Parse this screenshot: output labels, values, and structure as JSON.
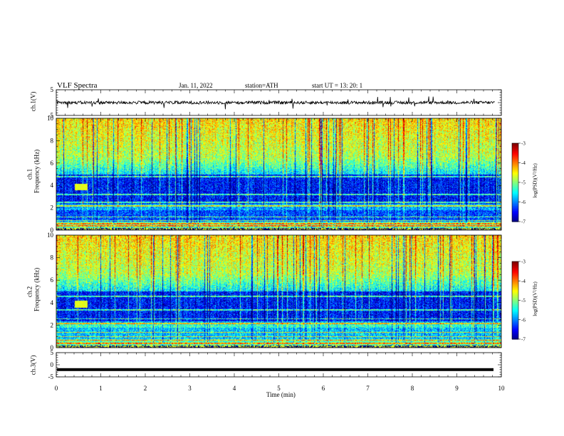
{
  "header": {
    "title": "VLF  Spectra",
    "date": "Jan. 11, 2022",
    "station": "station=ATH",
    "start": "start  UT  =   13: 20: 1"
  },
  "chart_data": [
    {
      "type": "line",
      "panel": "ch1-waveform",
      "ylabel": "ch.1(V)",
      "ylim": [
        -5,
        5
      ],
      "yticks": [
        "5",
        "-5"
      ],
      "xlim": [
        0,
        10
      ],
      "baseline": 0
    },
    {
      "type": "heatmap",
      "panel": "ch1-spectrogram",
      "ylabel": "ch.1\nFrequency (kHz)",
      "ylabel_line1": "ch.1",
      "ylabel_line2": "Frequency (kHz)",
      "ylim": [
        0,
        10
      ],
      "yticks": [
        "0",
        "2",
        "4",
        "6",
        "8",
        "10"
      ],
      "xlim": [
        0,
        10
      ],
      "colorbar": {
        "label": "log(PSD)(V²/Hz)",
        "range": [
          -7,
          -3
        ],
        "ticks": [
          "-3",
          "-4",
          "-5",
          "-6",
          "-7"
        ]
      }
    },
    {
      "type": "heatmap",
      "panel": "ch2-spectrogram",
      "ylabel_line1": "ch.2",
      "ylabel_line2": "Frequency (kHz)",
      "ylim": [
        0,
        10
      ],
      "yticks": [
        "0",
        "2",
        "4",
        "6",
        "8",
        "10"
      ],
      "xlim": [
        0,
        10
      ],
      "colorbar": {
        "label": "log(PSD)(V²/Hz)",
        "range": [
          -7,
          -3
        ],
        "ticks": [
          "-3",
          "-4",
          "-5",
          "-6",
          "-7"
        ]
      }
    },
    {
      "type": "line",
      "panel": "ch3-waveform",
      "ylabel": "ch.3(V)",
      "ylim": [
        -5,
        5
      ],
      "yticks": [
        "5",
        "0",
        "-5"
      ],
      "xlim": [
        0,
        10
      ],
      "baseline": -2
    }
  ],
  "xaxis": {
    "label": "Time  (min)",
    "ticks": [
      "0",
      "1",
      "2",
      "3",
      "4",
      "5",
      "6",
      "7",
      "8",
      "9",
      "10"
    ]
  },
  "colors": {
    "low": "#00008b",
    "mid": "#00ff80",
    "high": "#ff0000"
  }
}
